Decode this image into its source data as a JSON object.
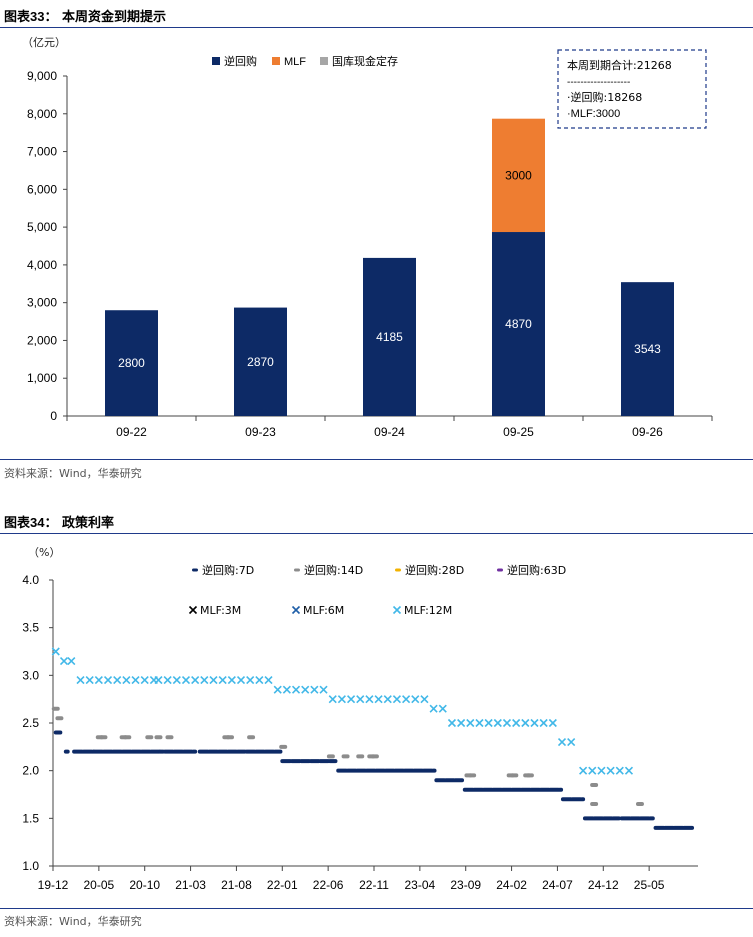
{
  "chart1": {
    "title_prefix": "图表",
    "title_num": "33",
    "title_text": "：  本周资金到期提示",
    "unit": "（亿元）",
    "source": "资料来源：Wind，华泰研究",
    "summary_box": {
      "line1": "本周到期合计:21268",
      "line2": "-------------------",
      "line3": "·逆回购:18268",
      "line4": "·MLF:3000"
    },
    "colors": {
      "repo": "#0d2a66",
      "mlf": "#ee7d31",
      "deposit": "#a6a6a6",
      "axis": "#444444"
    }
  },
  "chart2": {
    "title_prefix": "图表",
    "title_num": "34",
    "title_text": "：  政策利率",
    "unit": "（%）",
    "source": "资料来源：Wind，华泰研究",
    "colors": {
      "r7": "#0d2a66",
      "r14": "#8c8c8c",
      "r28": "#f2b200",
      "r63": "#7030a0",
      "mlf3": "#000000",
      "mlf6": "#1f5fa8",
      "mlf12": "#42b8e8"
    }
  },
  "chart_data": [
    {
      "type": "bar",
      "stacked": true,
      "categories": [
        "09-22",
        "09-23",
        "09-24",
        "09-25",
        "09-26"
      ],
      "series": [
        {
          "name": "逆回购",
          "values": [
            2800,
            2870,
            4185,
            4870,
            3543
          ],
          "labels": [
            "2800",
            "2870",
            "4185",
            "4870",
            "3543"
          ]
        },
        {
          "name": "MLF",
          "values": [
            0,
            0,
            0,
            3000,
            0
          ],
          "labels": [
            "",
            "",
            "",
            "3000",
            ""
          ]
        },
        {
          "name": "国库现金定存",
          "values": [
            0,
            0,
            0,
            0,
            0
          ]
        }
      ],
      "ylim": [
        0,
        9000
      ],
      "yticks": [
        "0",
        "1,000",
        "2,000",
        "3,000",
        "4,000",
        "5,000",
        "6,000",
        "7,000",
        "8,000",
        "9,000"
      ],
      "legend_position": "top-center",
      "grid": false
    },
    {
      "type": "scatter",
      "x_ticks": [
        "19-12",
        "20-05",
        "20-10",
        "21-03",
        "21-08",
        "22-01",
        "22-06",
        "22-11",
        "23-04",
        "23-09",
        "24-02",
        "24-07",
        "24-12",
        "25-05"
      ],
      "ylim": [
        1.0,
        4.0
      ],
      "yticks": [
        "1.0",
        "1.5",
        "2.0",
        "2.5",
        "3.0",
        "3.5",
        "4.0"
      ],
      "legend_position": "top",
      "grid": false,
      "series": [
        {
          "name": "逆回购:7D",
          "marker": "dash",
          "segments": [
            [
              0.3,
              2.4,
              0.8,
              2.4
            ],
            [
              1.4,
              2.2,
              1.6,
              2.2
            ],
            [
              2.3,
              2.2,
              4.4,
              2.2
            ],
            [
              4.5,
              2.2,
              11.6,
              2.2
            ],
            [
              11.7,
              2.2,
              12.0,
              2.2
            ],
            [
              12.2,
              2.2,
              15.5,
              2.2
            ],
            [
              16.0,
              2.2,
              20.9,
              2.2
            ],
            [
              21.1,
              2.2,
              24.8,
              2.2
            ],
            [
              25.0,
              2.1,
              30.8,
              2.1
            ],
            [
              31.1,
              2.0,
              41.6,
              2.0
            ],
            [
              41.8,
              1.9,
              44.6,
              1.9
            ],
            [
              44.9,
              1.8,
              55.4,
              1.8
            ],
            [
              55.6,
              1.7,
              57.8,
              1.7
            ],
            [
              58.0,
              1.5,
              61.7,
              1.5
            ],
            [
              62.0,
              1.5,
              65.4,
              1.5
            ],
            [
              65.7,
              1.4,
              69.8,
              1.4
            ]
          ]
        },
        {
          "name": "逆回购:14D",
          "marker": "dash",
          "points": [
            [
              0.3,
              2.65
            ],
            [
              0.7,
              2.55
            ],
            [
              5.1,
              2.35
            ],
            [
              5.5,
              2.35
            ],
            [
              7.7,
              2.35
            ],
            [
              8.1,
              2.35
            ],
            [
              10.5,
              2.35
            ],
            [
              11.5,
              2.35
            ],
            [
              12.7,
              2.35
            ],
            [
              18.9,
              2.35
            ],
            [
              19.3,
              2.35
            ],
            [
              21.6,
              2.35
            ],
            [
              25.1,
              2.25
            ],
            [
              30.3,
              2.15
            ],
            [
              31.9,
              2.15
            ],
            [
              33.5,
              2.15
            ],
            [
              34.7,
              2.15
            ],
            [
              35.1,
              2.15
            ],
            [
              45.3,
              1.95
            ],
            [
              45.7,
              1.95
            ],
            [
              49.9,
              1.95
            ],
            [
              50.3,
              1.95
            ],
            [
              51.7,
              1.95
            ],
            [
              52.0,
              1.95
            ],
            [
              59.0,
              1.85
            ],
            [
              59.0,
              1.65
            ],
            [
              64.0,
              1.65
            ]
          ]
        },
        {
          "name": "逆回购:28D",
          "marker": "dash",
          "points": []
        },
        {
          "name": "逆回购:63D",
          "marker": "dash",
          "points": []
        },
        {
          "name": "MLF:3M",
          "marker": "x",
          "points": []
        },
        {
          "name": "MLF:6M",
          "marker": "x",
          "points": []
        },
        {
          "name": "MLF:12M",
          "marker": "x",
          "points": [
            [
              0.3,
              3.25
            ],
            [
              1.2,
              3.15
            ],
            [
              2.0,
              3.15
            ],
            [
              3.0,
              2.95
            ],
            [
              4.0,
              2.95
            ],
            [
              5.0,
              2.95
            ],
            [
              6.0,
              2.95
            ],
            [
              7.0,
              2.95
            ],
            [
              8.0,
              2.95
            ],
            [
              9.0,
              2.95
            ],
            [
              10.0,
              2.95
            ],
            [
              11.0,
              2.95
            ],
            [
              11.5,
              2.95
            ],
            [
              12.5,
              2.95
            ],
            [
              13.5,
              2.95
            ],
            [
              14.5,
              2.95
            ],
            [
              15.5,
              2.95
            ],
            [
              16.5,
              2.95
            ],
            [
              17.5,
              2.95
            ],
            [
              18.5,
              2.95
            ],
            [
              19.5,
              2.95
            ],
            [
              20.5,
              2.95
            ],
            [
              21.5,
              2.95
            ],
            [
              22.5,
              2.95
            ],
            [
              23.5,
              2.95
            ],
            [
              24.5,
              2.85
            ],
            [
              25.5,
              2.85
            ],
            [
              26.5,
              2.85
            ],
            [
              27.5,
              2.85
            ],
            [
              28.5,
              2.85
            ],
            [
              29.5,
              2.85
            ],
            [
              30.5,
              2.75
            ],
            [
              31.5,
              2.75
            ],
            [
              32.5,
              2.75
            ],
            [
              33.5,
              2.75
            ],
            [
              34.5,
              2.75
            ],
            [
              35.5,
              2.75
            ],
            [
              36.5,
              2.75
            ],
            [
              37.5,
              2.75
            ],
            [
              38.5,
              2.75
            ],
            [
              39.5,
              2.75
            ],
            [
              40.5,
              2.75
            ],
            [
              41.5,
              2.65
            ],
            [
              42.5,
              2.65
            ],
            [
              43.5,
              2.5
            ],
            [
              44.5,
              2.5
            ],
            [
              45.5,
              2.5
            ],
            [
              46.5,
              2.5
            ],
            [
              47.5,
              2.5
            ],
            [
              48.5,
              2.5
            ],
            [
              49.5,
              2.5
            ],
            [
              50.5,
              2.5
            ],
            [
              51.5,
              2.5
            ],
            [
              52.5,
              2.5
            ],
            [
              53.5,
              2.5
            ],
            [
              54.5,
              2.5
            ],
            [
              55.5,
              2.3
            ],
            [
              56.5,
              2.3
            ],
            [
              57.8,
              2.0
            ],
            [
              58.8,
              2.0
            ],
            [
              59.8,
              2.0
            ],
            [
              60.8,
              2.0
            ],
            [
              61.8,
              2.0
            ],
            [
              62.8,
              2.0
            ]
          ]
        }
      ]
    }
  ]
}
